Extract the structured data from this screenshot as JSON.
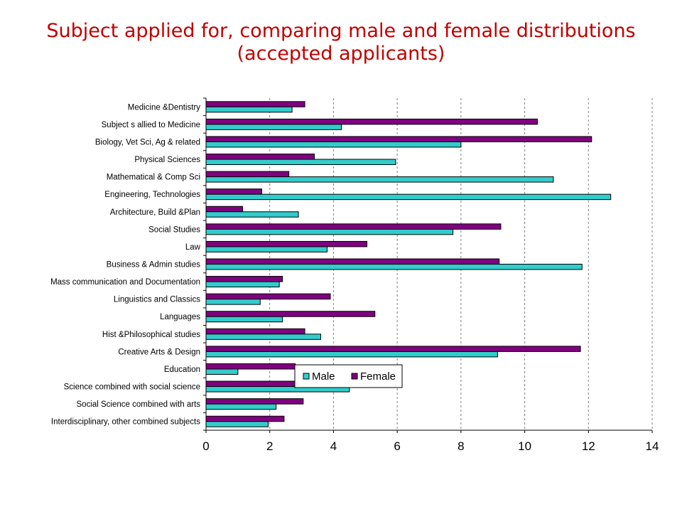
{
  "slide": {
    "title_line1": "Subject applied for, comparing male and female distributions",
    "title_line2": "(accepted applicants)"
  },
  "colors": {
    "title": "#c00000",
    "male": "#33cccc",
    "female": "#800080",
    "grid": "#808080"
  },
  "chart_data": {
    "type": "bar",
    "orientation": "horizontal",
    "title": "",
    "xlabel": "",
    "ylabel": "",
    "xlim": [
      0,
      14
    ],
    "xticks": [
      0,
      2,
      4,
      6,
      8,
      10,
      12,
      14
    ],
    "grid": "vertical dashed gridlines",
    "legend_position": "center-bottom, inside plot",
    "categories": [
      "Medicine &Dentistry",
      "Subject s allied to Medicine",
      "Biology, Vet Sci, Ag & related",
      "Physical Sciences",
      "Mathematical & Comp Sci",
      "Engineering, Technologies",
      "Architecture, Build &Plan",
      "Social Studies",
      "Law",
      "Business & Admin studies",
      "Mass communication and Documentation",
      "Linguistics and Classics",
      "Languages",
      "Hist &Philosophical studies",
      "Creative Arts & Design",
      "Education",
      "Science combined with social science",
      "Social Science combined with arts",
      "Interdisciplinary, other combined subjects"
    ],
    "series": [
      {
        "name": "Male",
        "values": [
          2.7,
          4.25,
          8.0,
          5.95,
          10.9,
          12.7,
          2.9,
          7.75,
          3.8,
          11.8,
          2.3,
          1.7,
          2.4,
          3.6,
          9.15,
          1.0,
          4.5,
          2.2,
          1.95
        ]
      },
      {
        "name": "Female",
        "values": [
          3.1,
          10.4,
          12.1,
          3.4,
          2.6,
          1.75,
          1.15,
          9.25,
          5.05,
          9.2,
          2.4,
          3.9,
          5.3,
          3.1,
          11.75,
          2.8,
          2.8,
          3.05,
          2.45
        ]
      }
    ]
  }
}
